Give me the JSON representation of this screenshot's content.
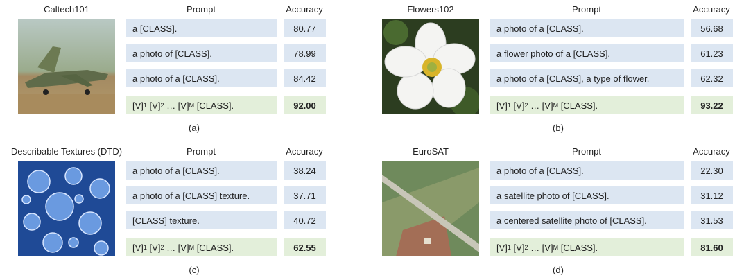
{
  "panels": [
    {
      "title": "Caltech101",
      "header": {
        "prompt": "Prompt",
        "accuracy": "Accuracy"
      },
      "rows": [
        {
          "prompt": "a [CLASS].",
          "accuracy": "80.77"
        },
        {
          "prompt": "a photo of [CLASS].",
          "accuracy": "78.99"
        },
        {
          "prompt": "a photo of a [CLASS].",
          "accuracy": "84.42"
        },
        {
          "prompt_parts": [
            {
              "text": "[V]"
            },
            {
              "sub": "1"
            },
            {
              "text": " [V]"
            },
            {
              "sub": "2"
            },
            {
              "text": " … [V]"
            },
            {
              "sub": "M"
            },
            {
              "text": " [CLASS]."
            }
          ],
          "accuracy": "92.00"
        }
      ],
      "caption": "(a)"
    },
    {
      "title": "Flowers102",
      "header": {
        "prompt": "Prompt",
        "accuracy": "Accuracy"
      },
      "rows": [
        {
          "prompt": "a photo of a [CLASS].",
          "accuracy": "56.68"
        },
        {
          "prompt": "a flower photo of a [CLASS].",
          "accuracy": "61.23"
        },
        {
          "prompt": "a photo of a [CLASS], a type of flower.",
          "accuracy": "62.32"
        },
        {
          "prompt_parts": [
            {
              "text": "[V]"
            },
            {
              "sub": "1"
            },
            {
              "text": " [V]"
            },
            {
              "sub": "2"
            },
            {
              "text": " … [V]"
            },
            {
              "sub": "M"
            },
            {
              "text": " [CLASS]."
            }
          ],
          "accuracy": "93.22"
        }
      ],
      "caption": "(b)"
    },
    {
      "title": "Describable Textures (DTD)",
      "header": {
        "prompt": "Prompt",
        "accuracy": "Accuracy"
      },
      "rows": [
        {
          "prompt": "a photo of a [CLASS].",
          "accuracy": "38.24"
        },
        {
          "prompt": "a photo of a [CLASS] texture.",
          "accuracy": "37.71"
        },
        {
          "prompt": "[CLASS] texture.",
          "accuracy": "40.72"
        },
        {
          "prompt_parts": [
            {
              "text": "[V]"
            },
            {
              "sub": "1"
            },
            {
              "text": " [V]"
            },
            {
              "sub": "2"
            },
            {
              "text": " … [V]"
            },
            {
              "sub": "M"
            },
            {
              "text": " [CLASS]."
            }
          ],
          "accuracy": "62.55"
        }
      ],
      "caption": "(c)"
    },
    {
      "title": "EuroSAT",
      "header": {
        "prompt": "Prompt",
        "accuracy": "Accuracy"
      },
      "rows": [
        {
          "prompt": "a photo of a [CLASS].",
          "accuracy": "22.30"
        },
        {
          "prompt": "a satellite photo of [CLASS].",
          "accuracy": "31.12"
        },
        {
          "prompt": "a centered satellite photo of [CLASS].",
          "accuracy": "31.53"
        },
        {
          "prompt_parts": [
            {
              "text": "[V]"
            },
            {
              "sub": "1"
            },
            {
              "text": " [V]"
            },
            {
              "sub": "2"
            },
            {
              "text": " … [V]"
            },
            {
              "sub": "M"
            },
            {
              "text": " [CLASS]."
            }
          ],
          "accuracy": "81.60"
        }
      ],
      "caption": "(d)"
    }
  ]
}
